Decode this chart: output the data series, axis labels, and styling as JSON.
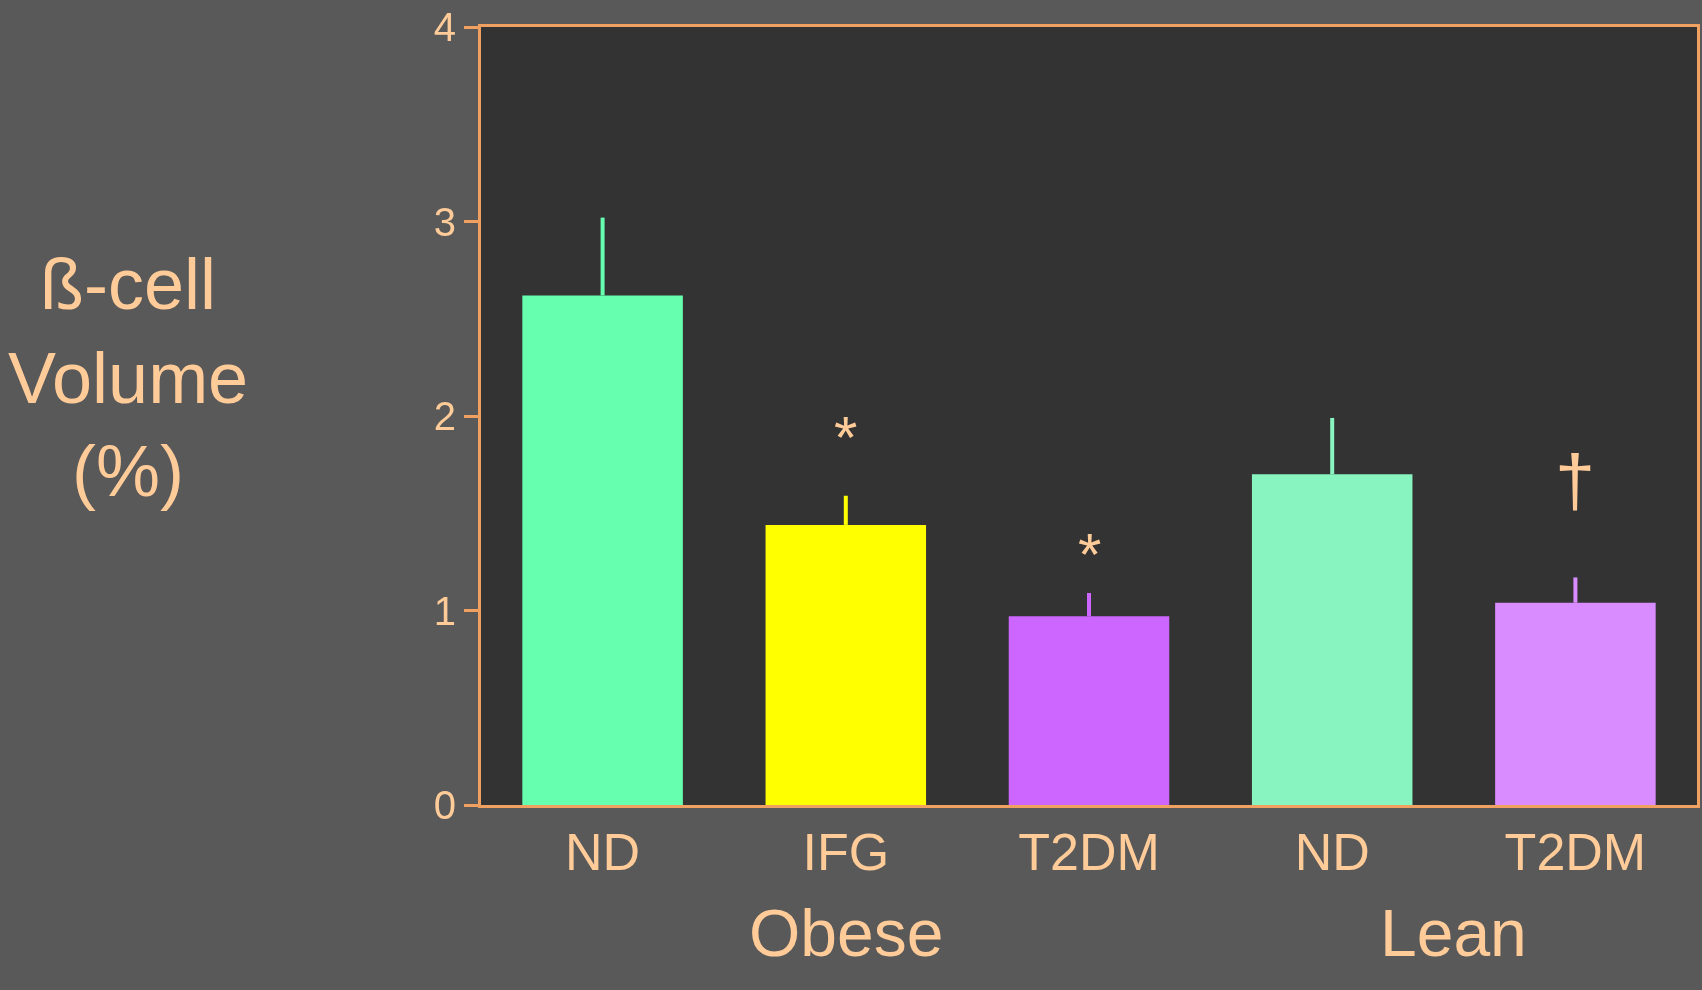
{
  "chart_data": {
    "type": "bar",
    "ylabel": "ß-cell Volume (%)",
    "categories": [
      "ND",
      "IFG",
      "T2DM",
      "ND",
      "T2DM"
    ],
    "values": [
      2.62,
      1.44,
      0.97,
      1.7,
      1.04
    ],
    "colors": [
      "#66ffb0",
      "#ffff00",
      "#cc66ff",
      "#88f5c0",
      "#d98cff"
    ],
    "errors": [
      [
        2.62,
        3.02
      ],
      [
        1.44,
        1.59
      ],
      [
        0.97,
        1.09
      ],
      [
        1.7,
        1.99
      ],
      [
        1.04,
        1.17
      ]
    ],
    "ylim": [
      0,
      4
    ],
    "yticks": [
      0,
      1,
      2,
      3,
      4
    ],
    "annotations": [
      "*",
      "*",
      "†",
      "Obese",
      "Lean"
    ]
  }
}
